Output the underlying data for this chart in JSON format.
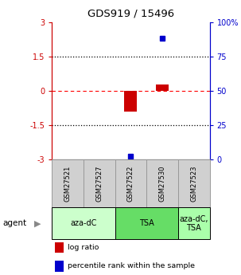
{
  "title": "GDS919 / 15496",
  "samples": [
    "GSM27521",
    "GSM27527",
    "GSM27522",
    "GSM27530",
    "GSM27523"
  ],
  "log_ratios": [
    null,
    null,
    -0.9,
    0.28,
    null
  ],
  "percentile_ranks": [
    null,
    null,
    2.5,
    88.0,
    null
  ],
  "agents": [
    {
      "label": "aza-dC",
      "span": [
        0,
        2
      ],
      "color": "#ccffcc"
    },
    {
      "label": "TSA",
      "span": [
        2,
        4
      ],
      "color": "#66dd66"
    },
    {
      "label": "aza-dC,\nTSA",
      "span": [
        4,
        5
      ],
      "color": "#aaffaa"
    }
  ],
  "ylim": [
    -3,
    3
  ],
  "yticks": [
    -3,
    -1.5,
    0,
    1.5,
    3
  ],
  "ytick_labels_left": [
    "-3",
    "-1.5",
    "0",
    "1.5",
    "3"
  ],
  "ytick_labels_right": [
    "0",
    "25",
    "50",
    "75",
    "100%"
  ],
  "hlines_dotted": [
    -1.5,
    1.5
  ],
  "hline_dashed": 0,
  "bar_color": "#cc0000",
  "dot_color": "#0000cc",
  "sample_box_color": "#d0d0d0",
  "sample_box_edge": "#999999",
  "plot_bg": "#ffffff",
  "left_axis_color": "#cc0000",
  "right_axis_color": "#0000cc",
  "figsize": [
    3.03,
    3.45
  ],
  "dpi": 100
}
